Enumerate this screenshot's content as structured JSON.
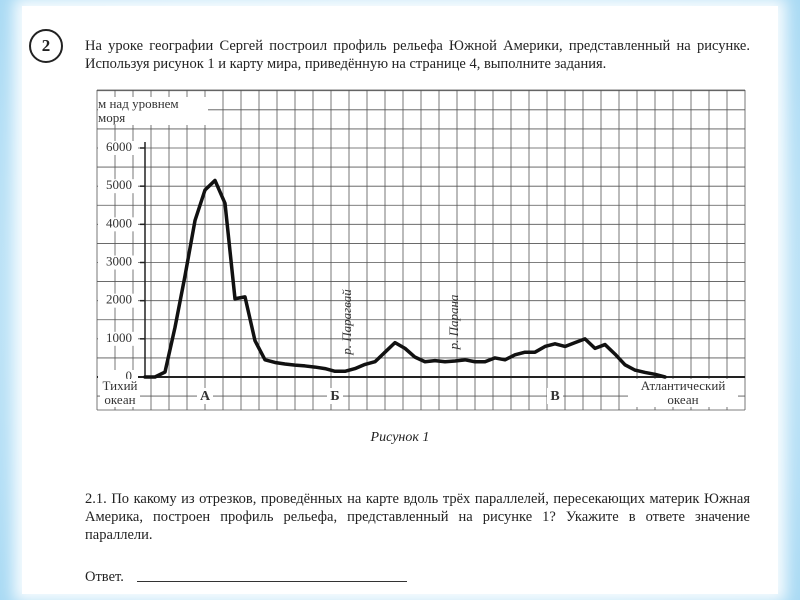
{
  "question_number": "2",
  "intro": "На уроке географии Сергей построил профиль рельефа Южной Америки, представленный на рисунке. Используя рисунок 1 и карту мира, приведённую на странице 4, выполните задания.",
  "chart_data": {
    "type": "line",
    "ylabel": "м над уровнем моря",
    "caption": "Рисунок 1",
    "ylim": [
      0,
      6000
    ],
    "yticks": [
      0,
      1000,
      2000,
      3000,
      4000,
      5000,
      6000
    ],
    "categories": [
      null,
      null,
      null,
      null,
      null,
      null,
      "А",
      null,
      null,
      null,
      null,
      null,
      null,
      null,
      null,
      null,
      null,
      null,
      null,
      "Б",
      null,
      null,
      null,
      null,
      null,
      null,
      null,
      null,
      null,
      null,
      null,
      null,
      null,
      null,
      null,
      null,
      null,
      null,
      null,
      null,
      null,
      "В",
      null,
      null,
      null,
      null,
      null,
      null,
      null,
      null,
      null,
      null,
      null
    ],
    "values": [
      0,
      0,
      130,
      1300,
      2650,
      4100,
      4900,
      5150,
      4550,
      2050,
      2100,
      950,
      450,
      380,
      340,
      310,
      290,
      260,
      220,
      150,
      150,
      220,
      330,
      400,
      650,
      900,
      750,
      520,
      400,
      430,
      400,
      420,
      450,
      400,
      400,
      500,
      450,
      580,
      650,
      650,
      800,
      870,
      800,
      900,
      1000,
      750,
      850,
      600,
      320,
      180,
      120,
      70,
      0
    ],
    "color": "#111111",
    "grid": true,
    "annotations": [
      "р. Парагвай",
      "р. Парана",
      "Тихий океан",
      "Атлантический океан"
    ]
  },
  "question": "2.1. По какому из отрезков, проведённых на карте вдоль трёх параллелей, пересекающих материк Южная Америка, построен профиль рельефа, представленный на рисунке 1? Укажите в ответе значение параллели.",
  "answer_label": "Ответ."
}
